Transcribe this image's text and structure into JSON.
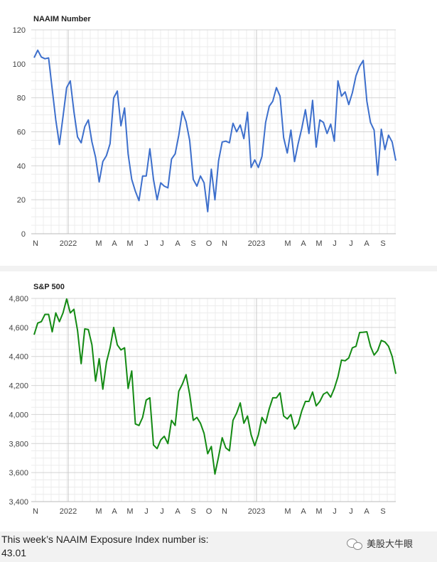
{
  "chart_data": [
    {
      "type": "line",
      "title": "NAAIM Number",
      "ylim": [
        0,
        120
      ],
      "yticks": [
        0,
        20,
        40,
        60,
        80,
        100,
        120
      ],
      "ytick_labels": [
        "0",
        "20",
        "40",
        "60",
        "80",
        "100",
        "120"
      ],
      "xtick_labels": [
        "N",
        "2022",
        "M",
        "A",
        "M",
        "J",
        "J",
        "A",
        "S",
        "O",
        "N",
        "2023",
        "M",
        "A",
        "M",
        "J",
        "J",
        "A",
        "S"
      ],
      "grid": true,
      "series": [
        {
          "color": "#3d6fcc",
          "values": [
            103.6,
            108,
            104,
            103,
            103.5,
            85,
            67,
            52.5,
            69,
            86,
            90,
            72,
            57,
            53.5,
            63,
            67,
            54,
            45,
            30.5,
            42.5,
            46,
            53,
            80,
            84,
            63.5,
            74,
            47,
            32,
            25,
            19.5,
            34,
            34,
            50,
            32,
            20,
            30,
            28,
            27,
            44,
            47,
            58,
            72,
            66,
            55,
            32,
            28,
            34,
            30,
            13,
            38,
            20,
            43,
            54,
            54.5,
            53.5,
            65,
            60,
            64,
            56,
            71.5,
            39,
            43.5,
            39,
            45.5,
            65.5,
            75,
            78,
            86,
            81,
            56.5,
            47.5,
            61,
            42.5,
            53,
            62,
            73,
            59,
            78.5,
            51,
            67,
            65.5,
            59,
            64.5,
            54.5,
            90,
            81,
            83.5,
            76,
            83,
            93,
            98.5,
            102,
            78,
            65.5,
            61,
            34.5,
            61.5,
            49.5,
            58,
            54,
            43.01
          ]
        }
      ]
    },
    {
      "type": "line",
      "title": "S&P 500",
      "ylim": [
        3400,
        4800
      ],
      "yticks": [
        3400,
        3600,
        3800,
        4000,
        4200,
        4400,
        4600,
        4800
      ],
      "ytick_labels": [
        "3,400",
        "3,600",
        "3,800",
        "4,000",
        "4,200",
        "4,400",
        "4,600",
        "4,800"
      ],
      "xtick_labels": [
        "N",
        "2022",
        "M",
        "A",
        "M",
        "J",
        "J",
        "A",
        "S",
        "O",
        "N",
        "2023",
        "M",
        "A",
        "M",
        "J",
        "J",
        "A",
        "S"
      ],
      "grid": true,
      "series": [
        {
          "color": "#138a13",
          "values": [
            4550,
            4630,
            4640,
            4690,
            4690,
            4570,
            4700,
            4640,
            4700,
            4796,
            4700,
            4725,
            4580,
            4350,
            4590,
            4585,
            4480,
            4230,
            4385,
            4175,
            4360,
            4460,
            4600,
            4480,
            4445,
            4460,
            4180,
            4300,
            3935,
            3925,
            3980,
            4100,
            4115,
            3790,
            3765,
            3825,
            3850,
            3800,
            3960,
            3925,
            4160,
            4210,
            4275,
            4140,
            3960,
            3980,
            3940,
            3870,
            3730,
            3780,
            3590,
            3710,
            3840,
            3770,
            3750,
            3960,
            4010,
            4080,
            3940,
            3990,
            3860,
            3785,
            3860,
            3980,
            3940,
            4040,
            4115,
            4115,
            4150,
            3990,
            3970,
            4000,
            3900,
            3935,
            4025,
            4090,
            4090,
            4155,
            4060,
            4090,
            4140,
            4155,
            4120,
            4180,
            4260,
            4375,
            4370,
            4390,
            4460,
            4470,
            4565,
            4567,
            4570,
            4470,
            4410,
            4440,
            4510,
            4500,
            4470,
            4400,
            4280
          ]
        }
      ]
    }
  ],
  "footer": {
    "text": "This week’s NAAIM Exposure Index number is:",
    "value": "43.01"
  },
  "brand": {
    "label": "美股大牛眼",
    "icon": "wechat-icon"
  }
}
